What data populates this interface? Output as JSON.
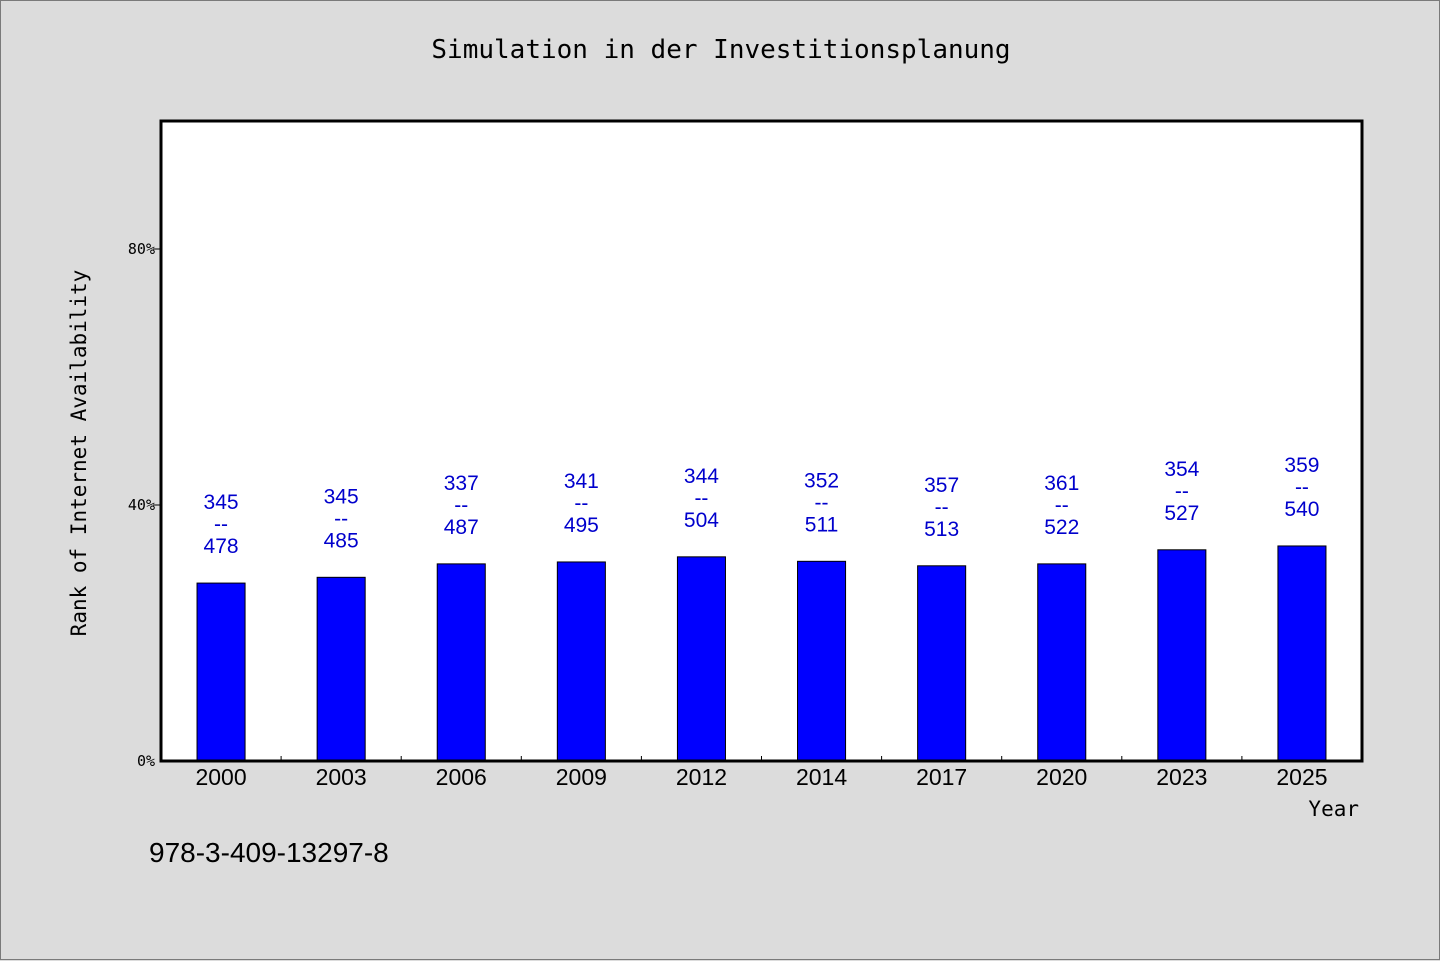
{
  "chart_data": {
    "type": "bar",
    "title": "Simulation in der Investitionsplanung",
    "xlabel": "Year",
    "ylabel": "Rank of Internet Availability",
    "ylim": [
      0,
      100
    ],
    "yticks": [
      0,
      40,
      80
    ],
    "ytick_labels": [
      "0%",
      "40%",
      "80%"
    ],
    "categories": [
      "2000",
      "2003",
      "2006",
      "2009",
      "2012",
      "2014",
      "2017",
      "2020",
      "2023",
      "2025"
    ],
    "values": [
      27.8,
      28.7,
      30.8,
      31.1,
      31.9,
      31.2,
      30.5,
      30.8,
      33.0,
      33.6
    ],
    "bar_labels": [
      {
        "top": "345",
        "sep": "--",
        "bottom": "478"
      },
      {
        "top": "345",
        "sep": "--",
        "bottom": "485"
      },
      {
        "top": "337",
        "sep": "--",
        "bottom": "487"
      },
      {
        "top": "341",
        "sep": "--",
        "bottom": "495"
      },
      {
        "top": "344",
        "sep": "--",
        "bottom": "504"
      },
      {
        "top": "352",
        "sep": "--",
        "bottom": "511"
      },
      {
        "top": "357",
        "sep": "--",
        "bottom": "513"
      },
      {
        "top": "361",
        "sep": "--",
        "bottom": "522"
      },
      {
        "top": "354",
        "sep": "--",
        "bottom": "527"
      },
      {
        "top": "359",
        "sep": "--",
        "bottom": "540"
      }
    ],
    "bar_color": "#0000ff",
    "label_color": "#0000cc",
    "grid": false,
    "legend": "none"
  },
  "footer": {
    "isbn": "978-3-409-13297-8"
  }
}
